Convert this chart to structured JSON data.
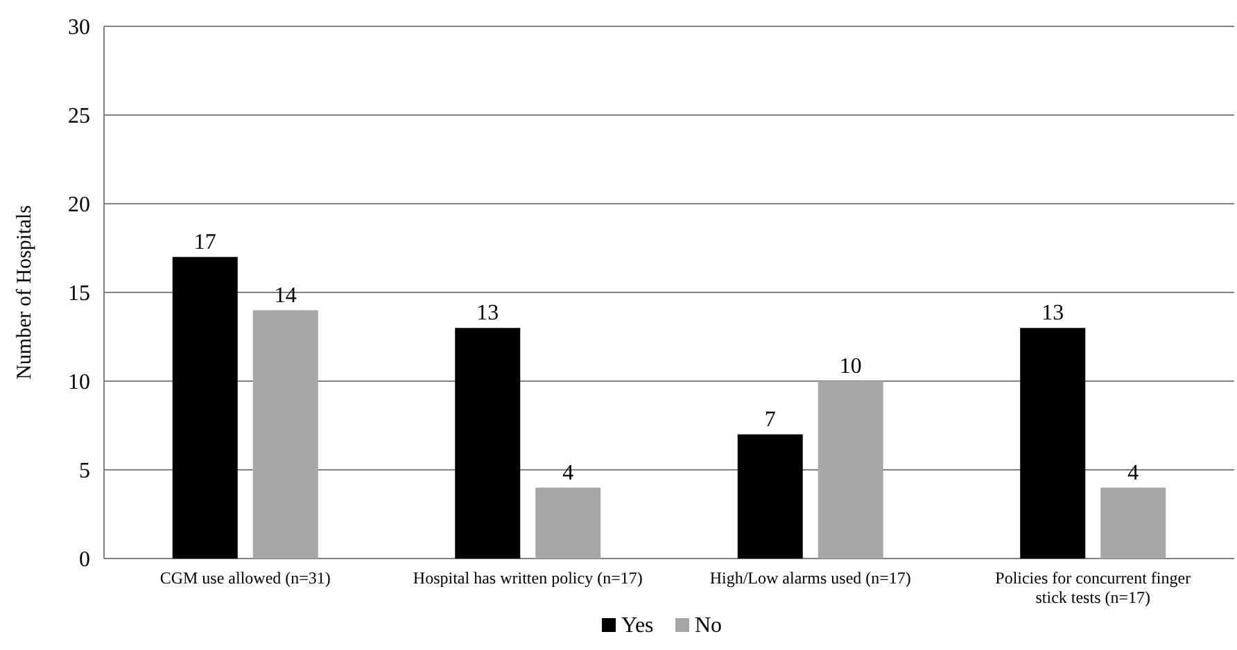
{
  "chart_data": {
    "type": "bar",
    "ylabel": "Number of Hospitals",
    "categories": [
      "CGM use allowed (n=31)",
      "Hospital has written policy (n=17)",
      "High/Low alarms used (n=17)",
      "Policies for concurrent finger stick tests (n=17)"
    ],
    "series": [
      {
        "name": "Yes",
        "color": "#000000",
        "values": [
          17,
          13,
          7,
          13
        ]
      },
      {
        "name": "No",
        "color": "#a6a6a6",
        "values": [
          14,
          4,
          10,
          4
        ]
      }
    ],
    "ylim": [
      0,
      30
    ],
    "yticks": [
      0,
      5,
      10,
      15,
      20,
      25,
      30
    ],
    "grid": "y",
    "legend": "bottom",
    "data_labels": true
  }
}
